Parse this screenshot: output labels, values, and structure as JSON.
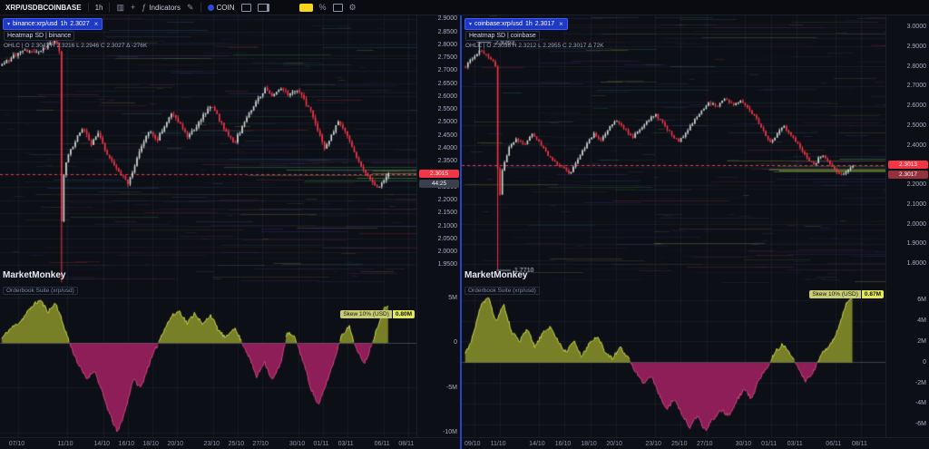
{
  "theme": {
    "panel_bg": "#0d0f17",
    "up": "#cfd9d2",
    "down": "#f23645",
    "grid": "rgba(150,163,194,0.07)",
    "heat_palette": [
      "#2b3a8c",
      "#45268c",
      "#1f6a5a",
      "#2a7a3a",
      "#8c8c2a",
      "#8c2a2a",
      "#27568c",
      "#6a2a6a"
    ],
    "heat_bright": [
      "#cdd84a",
      "#4fae5a"
    ],
    "osc_pos_fill": "#778026",
    "osc_pos_line": "#ccd84a",
    "osc_neg_fill": "#8e1e57",
    "osc_neg_line": "#d6457f",
    "accent_blue": "#2446c8",
    "badge_red": "#f23645",
    "annotation_text": "#cfd5e3"
  },
  "toolbar": {
    "symbol": "XRP/USDBCOINBASE",
    "interval": "1h",
    "indicators": "Indicators",
    "coin": "COIN"
  },
  "panels": [
    {
      "tab": "binance:xrp/usd",
      "tab_tf": "1h",
      "tab_price": "2.3027",
      "legend_heatmap": "Heatmap SD | binance",
      "legend_ohlc": "OHLC  |  O 2.3042   H 2.3216   L 2.2946   C 2.3027   Δ -276K",
      "watermark": "MarketMonkey",
      "osc_title": "Orderbook Suite (xrp/usd)",
      "skew_label": "Skew 10% (USD)",
      "skew_value": "0.80M",
      "badge_price": "2.3015",
      "badge_countdown": "44:25",
      "last": 2.3015,
      "range": [
        2.915,
        1.878
      ],
      "xspan": [
        0.004,
        0.93
      ],
      "seed": 7,
      "noise": 0.014,
      "candles": 170,
      "price_ticks": [
        "2.9000",
        "2.8500",
        "2.8000",
        "2.7500",
        "2.7000",
        "2.6500",
        "2.6000",
        "2.5500",
        "2.5000",
        "2.4500",
        "2.4000",
        "2.3500",
        "2.3000",
        "2.2500",
        "2.2000",
        "2.1500",
        "2.1000",
        "2.0500",
        "2.0000",
        "1.9500"
      ],
      "anchors": [
        [
          0.0,
          2.72
        ],
        [
          0.03,
          2.76
        ],
        [
          0.06,
          2.78
        ],
        [
          0.09,
          2.77
        ],
        [
          0.12,
          2.8
        ],
        [
          0.14,
          2.82
        ],
        [
          0.148,
          2.78
        ],
        [
          0.152,
          2.05
        ],
        [
          0.158,
          2.28
        ],
        [
          0.17,
          2.38
        ],
        [
          0.19,
          2.43
        ],
        [
          0.21,
          2.48
        ],
        [
          0.23,
          2.42
        ],
        [
          0.25,
          2.46
        ],
        [
          0.27,
          2.38
        ],
        [
          0.29,
          2.34
        ],
        [
          0.31,
          2.3
        ],
        [
          0.325,
          2.26
        ],
        [
          0.34,
          2.32
        ],
        [
          0.36,
          2.41
        ],
        [
          0.38,
          2.47
        ],
        [
          0.4,
          2.43
        ],
        [
          0.42,
          2.49
        ],
        [
          0.44,
          2.54
        ],
        [
          0.46,
          2.5
        ],
        [
          0.48,
          2.44
        ],
        [
          0.5,
          2.48
        ],
        [
          0.52,
          2.53
        ],
        [
          0.54,
          2.57
        ],
        [
          0.56,
          2.52
        ],
        [
          0.58,
          2.46
        ],
        [
          0.6,
          2.42
        ],
        [
          0.62,
          2.48
        ],
        [
          0.64,
          2.54
        ],
        [
          0.66,
          2.59
        ],
        [
          0.68,
          2.63
        ],
        [
          0.7,
          2.6
        ],
        [
          0.72,
          2.64
        ],
        [
          0.74,
          2.61
        ],
        [
          0.76,
          2.63
        ],
        [
          0.78,
          2.59
        ],
        [
          0.8,
          2.54
        ],
        [
          0.82,
          2.46
        ],
        [
          0.835,
          2.4
        ],
        [
          0.85,
          2.45
        ],
        [
          0.87,
          2.5
        ],
        [
          0.89,
          2.46
        ],
        [
          0.9,
          2.42
        ],
        [
          0.92,
          2.36
        ],
        [
          0.94,
          2.31
        ],
        [
          0.96,
          2.27
        ],
        [
          0.975,
          2.25
        ],
        [
          0.99,
          2.29
        ],
        [
          1.0,
          2.303
        ]
      ],
      "spikes": [
        {
          "t": 0.152,
          "low": 1.885
        }
      ],
      "annotations": [],
      "time_ticks": [
        {
          "label": "07/10",
          "x": 0.045
        },
        {
          "label": "11/10",
          "x": 0.162
        },
        {
          "label": "14/10",
          "x": 0.249
        },
        {
          "label": "16/10",
          "x": 0.308
        },
        {
          "label": "18/10",
          "x": 0.366
        },
        {
          "label": "20/10",
          "x": 0.425
        },
        {
          "label": "23/10",
          "x": 0.512
        },
        {
          "label": "25/10",
          "x": 0.571
        },
        {
          "label": "27/10",
          "x": 0.629
        },
        {
          "label": "30/10",
          "x": 0.717
        },
        {
          "label": "01/11",
          "x": 0.775
        },
        {
          "label": "03/11",
          "x": 0.834
        },
        {
          "label": "06/11",
          "x": 0.921
        },
        {
          "label": "08/11",
          "x": 0.979
        }
      ],
      "osc": {
        "range": [
          6.5,
          -10.5
        ],
        "seed": 11,
        "noise": 0.45,
        "ticks": [
          {
            "label": "5M",
            "v": 5
          },
          {
            "label": "0",
            "v": 0
          },
          {
            "label": "-5M",
            "v": -5
          },
          {
            "label": "-10M",
            "v": -10
          }
        ],
        "anchors": [
          [
            0.0,
            0.5
          ],
          [
            0.02,
            1.5
          ],
          [
            0.05,
            2.5
          ],
          [
            0.08,
            4.2
          ],
          [
            0.1,
            4.8
          ],
          [
            0.12,
            3.5
          ],
          [
            0.14,
            4.5
          ],
          [
            0.16,
            2.0
          ],
          [
            0.18,
            -0.5
          ],
          [
            0.2,
            -2.5
          ],
          [
            0.22,
            -4.0
          ],
          [
            0.24,
            -3.0
          ],
          [
            0.26,
            -5.5
          ],
          [
            0.28,
            -8.0
          ],
          [
            0.3,
            -10.0
          ],
          [
            0.32,
            -7.5
          ],
          [
            0.34,
            -4.0
          ],
          [
            0.36,
            -5.0
          ],
          [
            0.38,
            -2.5
          ],
          [
            0.4,
            -0.5
          ],
          [
            0.42,
            1.5
          ],
          [
            0.44,
            3.0
          ],
          [
            0.46,
            3.6
          ],
          [
            0.48,
            2.2
          ],
          [
            0.5,
            3.4
          ],
          [
            0.52,
            2.0
          ],
          [
            0.54,
            3.2
          ],
          [
            0.56,
            1.5
          ],
          [
            0.58,
            0.5
          ],
          [
            0.6,
            1.8
          ],
          [
            0.62,
            0.3
          ],
          [
            0.64,
            -1.5
          ],
          [
            0.66,
            -3.8
          ],
          [
            0.68,
            -2.0
          ],
          [
            0.7,
            -4.2
          ],
          [
            0.72,
            -2.5
          ],
          [
            0.74,
            1.2
          ],
          [
            0.76,
            0.5
          ],
          [
            0.78,
            -2.0
          ],
          [
            0.8,
            -5.0
          ],
          [
            0.82,
            -7.0
          ],
          [
            0.84,
            -4.5
          ],
          [
            0.86,
            -2.0
          ],
          [
            0.88,
            1.0
          ],
          [
            0.9,
            1.8
          ],
          [
            0.92,
            -1.0
          ],
          [
            0.94,
            -2.2
          ],
          [
            0.955,
            -0.5
          ],
          [
            0.97,
            1.5
          ],
          [
            0.985,
            3.5
          ],
          [
            1.0,
            4.3
          ]
        ]
      }
    },
    {
      "tab": "coinbase:xrp/usd",
      "tab_tf": "1h",
      "tab_price": "2.3017",
      "legend_heatmap": "Heatmap SD | coinbase",
      "legend_ohlc": "OHLC  |  O 2.3036   H 2.3212   L 2.2955   C 2.3017   Δ 72K",
      "watermark": "MarketMonkey",
      "osc_title": "Orderbook Suite (xrp/usd)",
      "skew_label": "Skew 10% (USD)",
      "skew_value": "0.87M",
      "badge_price": "2.3013",
      "badge_alt": "2.3017",
      "last": 2.3013,
      "range": [
        3.06,
        1.7
      ],
      "xspan": [
        0.008,
        0.92
      ],
      "seed": 23,
      "noise": 0.013,
      "candles": 170,
      "price_ticks": [
        "3.0000",
        "2.9000",
        "2.8000",
        "2.7000",
        "2.6000",
        "2.5000",
        "2.4000",
        "2.3000",
        "2.2000",
        "2.1000",
        "2.0000",
        "1.9000",
        "1.8000"
      ],
      "anchors": [
        [
          0.0,
          2.8
        ],
        [
          0.02,
          2.85
        ],
        [
          0.035,
          2.88
        ],
        [
          0.05,
          2.86
        ],
        [
          0.065,
          2.84
        ],
        [
          0.078,
          2.8
        ],
        [
          0.085,
          2.05
        ],
        [
          0.092,
          2.25
        ],
        [
          0.11,
          2.38
        ],
        [
          0.13,
          2.44
        ],
        [
          0.15,
          2.4
        ],
        [
          0.17,
          2.46
        ],
        [
          0.19,
          2.42
        ],
        [
          0.21,
          2.36
        ],
        [
          0.23,
          2.32
        ],
        [
          0.25,
          2.29
        ],
        [
          0.27,
          2.26
        ],
        [
          0.29,
          2.33
        ],
        [
          0.31,
          2.4
        ],
        [
          0.33,
          2.46
        ],
        [
          0.35,
          2.43
        ],
        [
          0.37,
          2.49
        ],
        [
          0.39,
          2.53
        ],
        [
          0.41,
          2.49
        ],
        [
          0.43,
          2.44
        ],
        [
          0.45,
          2.48
        ],
        [
          0.47,
          2.53
        ],
        [
          0.49,
          2.56
        ],
        [
          0.51,
          2.51
        ],
        [
          0.53,
          2.46
        ],
        [
          0.55,
          2.42
        ],
        [
          0.57,
          2.47
        ],
        [
          0.59,
          2.53
        ],
        [
          0.61,
          2.58
        ],
        [
          0.63,
          2.62
        ],
        [
          0.65,
          2.6
        ],
        [
          0.67,
          2.64
        ],
        [
          0.69,
          2.61
        ],
        [
          0.71,
          2.63
        ],
        [
          0.73,
          2.59
        ],
        [
          0.75,
          2.54
        ],
        [
          0.77,
          2.47
        ],
        [
          0.785,
          2.41
        ],
        [
          0.8,
          2.45
        ],
        [
          0.82,
          2.5
        ],
        [
          0.84,
          2.46
        ],
        [
          0.86,
          2.4
        ],
        [
          0.88,
          2.34
        ],
        [
          0.9,
          2.3
        ],
        [
          0.92,
          2.36
        ],
        [
          0.94,
          2.31
        ],
        [
          0.96,
          2.26
        ],
        [
          0.975,
          2.25
        ],
        [
          0.99,
          2.29
        ],
        [
          1.0,
          2.302
        ]
      ],
      "spikes": [
        {
          "t": 0.085,
          "low": 1.771
        },
        {
          "t": 0.035,
          "high": 2.9263
        }
      ],
      "annotations": [
        {
          "t": 0.035,
          "price": 2.9263,
          "label": "2.9263"
        },
        {
          "t": 0.085,
          "price": 1.771,
          "label": "1.7710"
        }
      ],
      "time_ticks": [
        {
          "label": "09/10",
          "x": 0.03
        },
        {
          "label": "11/10",
          "x": 0.091
        },
        {
          "label": "14/10",
          "x": 0.182
        },
        {
          "label": "16/10",
          "x": 0.243
        },
        {
          "label": "18/10",
          "x": 0.304
        },
        {
          "label": "20/10",
          "x": 0.364
        },
        {
          "label": "23/10",
          "x": 0.456
        },
        {
          "label": "25/10",
          "x": 0.517
        },
        {
          "label": "27/10",
          "x": 0.577
        },
        {
          "label": "30/10",
          "x": 0.668
        },
        {
          "label": "01/11",
          "x": 0.729
        },
        {
          "label": "03/11",
          "x": 0.79
        },
        {
          "label": "06/11",
          "x": 0.881
        },
        {
          "label": "08/11",
          "x": 0.942
        }
      ],
      "osc": {
        "range": [
          7.5,
          -7.2
        ],
        "seed": 31,
        "noise": 0.4,
        "ticks": [
          {
            "label": "6M",
            "v": 6
          },
          {
            "label": "4M",
            "v": 4
          },
          {
            "label": "2M",
            "v": 2
          },
          {
            "label": "0",
            "v": 0
          },
          {
            "label": "-2M",
            "v": -2
          },
          {
            "label": "-4M",
            "v": -4
          },
          {
            "label": "-6M",
            "v": -6
          }
        ],
        "anchors": [
          [
            0.0,
            0.8
          ],
          [
            0.02,
            2.5
          ],
          [
            0.04,
            5.5
          ],
          [
            0.06,
            6.2
          ],
          [
            0.08,
            4.0
          ],
          [
            0.1,
            5.5
          ],
          [
            0.12,
            3.0
          ],
          [
            0.14,
            2.0
          ],
          [
            0.16,
            3.2
          ],
          [
            0.18,
            1.5
          ],
          [
            0.2,
            2.8
          ],
          [
            0.22,
            3.5
          ],
          [
            0.24,
            2.0
          ],
          [
            0.26,
            1.0
          ],
          [
            0.28,
            2.2
          ],
          [
            0.3,
            0.5
          ],
          [
            0.32,
            1.8
          ],
          [
            0.34,
            2.6
          ],
          [
            0.36,
            1.2
          ],
          [
            0.38,
            0.3
          ],
          [
            0.4,
            1.5
          ],
          [
            0.42,
            0.5
          ],
          [
            0.44,
            -0.8
          ],
          [
            0.46,
            -2.0
          ],
          [
            0.48,
            -1.2
          ],
          [
            0.5,
            -3.0
          ],
          [
            0.52,
            -4.5
          ],
          [
            0.54,
            -3.5
          ],
          [
            0.56,
            -5.0
          ],
          [
            0.58,
            -6.2
          ],
          [
            0.6,
            -5.2
          ],
          [
            0.62,
            -6.5
          ],
          [
            0.64,
            -5.5
          ],
          [
            0.66,
            -4.5
          ],
          [
            0.68,
            -5.2
          ],
          [
            0.7,
            -3.8
          ],
          [
            0.72,
            -2.5
          ],
          [
            0.74,
            -3.5
          ],
          [
            0.76,
            -1.5
          ],
          [
            0.78,
            -0.5
          ],
          [
            0.8,
            1.0
          ],
          [
            0.82,
            1.8
          ],
          [
            0.84,
            0.8
          ],
          [
            0.86,
            -0.5
          ],
          [
            0.88,
            -1.8
          ],
          [
            0.9,
            -0.8
          ],
          [
            0.92,
            0.8
          ],
          [
            0.94,
            1.5
          ],
          [
            0.955,
            2.5
          ],
          [
            0.97,
            4.0
          ],
          [
            0.985,
            5.8
          ],
          [
            1.0,
            6.6
          ]
        ]
      }
    }
  ]
}
